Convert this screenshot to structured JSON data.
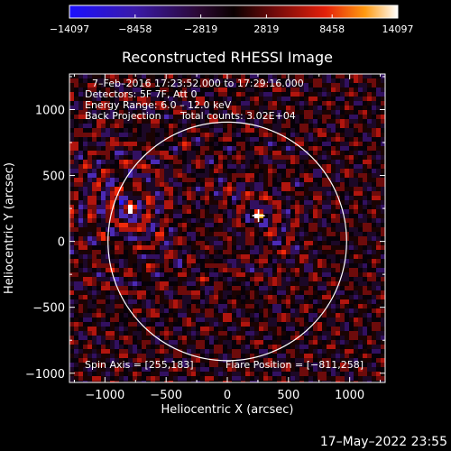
{
  "chart_data": {
    "type": "heatmap",
    "title": "Reconstructed RHESSI Image",
    "xlabel": "Heliocentric X (arcsec)",
    "ylabel": "Heliocentric Y (arcsec)",
    "xlim": [
      -1290,
      1290
    ],
    "ylim": [
      -1070,
      1270
    ],
    "xticks": [
      -1000,
      -500,
      0,
      500,
      1000
    ],
    "yticks": [
      -1000,
      -500,
      0,
      500,
      1000
    ],
    "xtick_labels": [
      "−1000",
      "−500",
      "0",
      "500",
      "1000"
    ],
    "ytick_labels": [
      "−1000",
      "−500",
      "0",
      "500",
      "1000"
    ],
    "colorbar": {
      "range": [
        -14097,
        14097
      ],
      "ticks": [
        -14097,
        -8458,
        -2819,
        2819,
        8458,
        14097
      ],
      "tick_labels": [
        "−14097",
        "−8458",
        "−2819",
        "2819",
        "8458",
        "14097"
      ]
    },
    "info_lines": [
      "7–Feb–2016 17:23:52.000 to 17:29:16.000",
      "Detectors: 5F 7F, Att 0",
      "Energy Range: 6.0 – 12.0 keV",
      "Back Projection",
      "Total counts: 3.02E+04"
    ],
    "spin_axis_text": "Spin Axis = [255,183]",
    "flare_position_text": "Flare Position = [−811,258]",
    "solar_limb": {
      "center": [
        0,
        0
      ],
      "radius_arcsec": 975
    },
    "flare_position": [
      -811,
      258
    ],
    "spin_axis": [
      255,
      183
    ],
    "sources": [
      {
        "x": -790,
        "y": 260,
        "peak": 14097
      },
      {
        "x": 255,
        "y": 195,
        "peak": 9000
      }
    ],
    "colors": {
      "background": "#000000",
      "limb": "#ffffff",
      "text": "#ffffff"
    }
  },
  "timestamp": "17–May–2022 23:55"
}
